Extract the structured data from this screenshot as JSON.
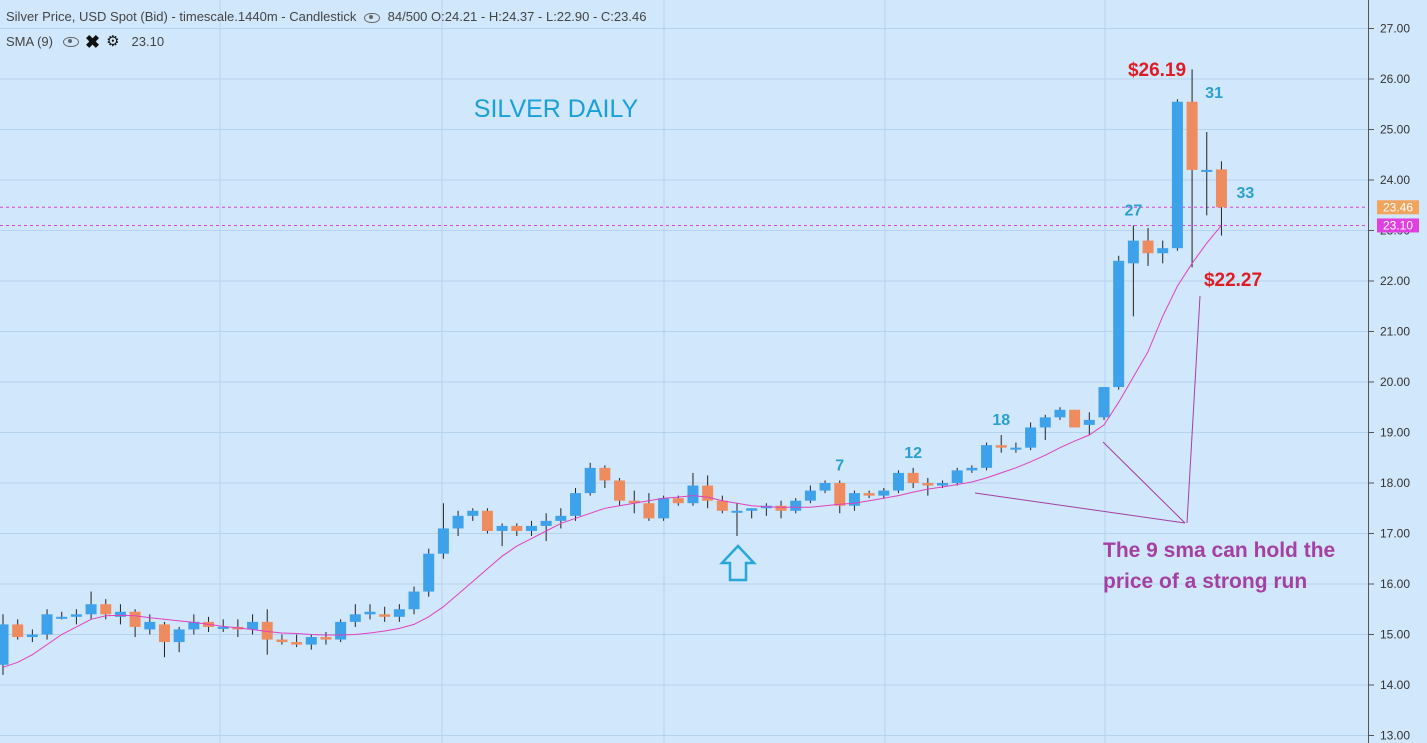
{
  "header": {
    "symbol": "Silver Price, USD Spot (Bid) - timescale.1440m - Candlestick",
    "counter": "84/500",
    "open": "O:24.21",
    "high": "H:24.37",
    "low": "L:22.90",
    "close": "C:23.46",
    "indicator_name": "SMA (9)",
    "indicator_value": "23.10"
  },
  "icons": {
    "visibility": "eye-icon",
    "remove": "close-icon",
    "settings": "gear-icon",
    "marker": "up-arrow-icon"
  },
  "colors": {
    "background": "#d1e7fb",
    "bullish": "#3ea2ea",
    "bearish": "#ef8c5f",
    "sma": "#e040c0",
    "price_line": "#f2a35c",
    "sma_line": "#e040e0",
    "title": "#1aa0d8",
    "count_label": "#2aa0d0",
    "price_annotation": "#e01b24",
    "note": "#a43fa4"
  },
  "chart_data": {
    "type": "candlestick",
    "title": "SILVER DAILY",
    "ylim": [
      13,
      27.5
    ],
    "yticks": [
      "13.00",
      "14.00",
      "15.00",
      "16.00",
      "17.00",
      "18.00",
      "19.00",
      "20.00",
      "21.00",
      "22.00",
      "23.00",
      "24.00",
      "25.00",
      "26.00",
      "27.00"
    ],
    "grid": true,
    "candles": [
      {
        "o": 14.4,
        "h": 15.4,
        "l": 14.2,
        "c": 15.2
      },
      {
        "o": 15.2,
        "h": 15.3,
        "l": 14.9,
        "c": 14.95
      },
      {
        "o": 14.95,
        "h": 15.1,
        "l": 14.85,
        "c": 15.0
      },
      {
        "o": 15.0,
        "h": 15.5,
        "l": 14.9,
        "c": 15.4
      },
      {
        "o": 15.35,
        "h": 15.45,
        "l": 15.3,
        "c": 15.35
      },
      {
        "o": 15.35,
        "h": 15.5,
        "l": 15.2,
        "c": 15.4
      },
      {
        "o": 15.4,
        "h": 15.85,
        "l": 15.3,
        "c": 15.6
      },
      {
        "o": 15.6,
        "h": 15.7,
        "l": 15.3,
        "c": 15.4
      },
      {
        "o": 15.35,
        "h": 15.6,
        "l": 15.2,
        "c": 15.45
      },
      {
        "o": 15.45,
        "h": 15.5,
        "l": 14.95,
        "c": 15.15
      },
      {
        "o": 15.1,
        "h": 15.4,
        "l": 15.0,
        "c": 15.25
      },
      {
        "o": 15.2,
        "h": 15.25,
        "l": 14.55,
        "c": 14.85
      },
      {
        "o": 14.85,
        "h": 15.15,
        "l": 14.65,
        "c": 15.1
      },
      {
        "o": 15.1,
        "h": 15.4,
        "l": 15.0,
        "c": 15.25
      },
      {
        "o": 15.25,
        "h": 15.35,
        "l": 15.05,
        "c": 15.15
      },
      {
        "o": 15.15,
        "h": 15.3,
        "l": 15.05,
        "c": 15.15
      },
      {
        "o": 15.15,
        "h": 15.3,
        "l": 14.95,
        "c": 15.1
      },
      {
        "o": 15.1,
        "h": 15.4,
        "l": 15.0,
        "c": 15.25
      },
      {
        "o": 15.25,
        "h": 15.5,
        "l": 14.6,
        "c": 14.9
      },
      {
        "o": 14.9,
        "h": 15.0,
        "l": 14.8,
        "c": 14.85
      },
      {
        "o": 14.85,
        "h": 15.0,
        "l": 14.75,
        "c": 14.8
      },
      {
        "o": 14.8,
        "h": 15.0,
        "l": 14.7,
        "c": 14.95
      },
      {
        "o": 14.95,
        "h": 15.05,
        "l": 14.8,
        "c": 14.9
      },
      {
        "o": 14.9,
        "h": 15.3,
        "l": 14.85,
        "c": 15.25
      },
      {
        "o": 15.25,
        "h": 15.6,
        "l": 15.15,
        "c": 15.4
      },
      {
        "o": 15.4,
        "h": 15.6,
        "l": 15.3,
        "c": 15.45
      },
      {
        "o": 15.4,
        "h": 15.55,
        "l": 15.25,
        "c": 15.35
      },
      {
        "o": 15.35,
        "h": 15.6,
        "l": 15.25,
        "c": 15.5
      },
      {
        "o": 15.5,
        "h": 15.95,
        "l": 15.4,
        "c": 15.85
      },
      {
        "o": 15.85,
        "h": 16.7,
        "l": 15.75,
        "c": 16.6
      },
      {
        "o": 16.6,
        "h": 17.6,
        "l": 16.5,
        "c": 17.1
      },
      {
        "o": 17.1,
        "h": 17.45,
        "l": 16.95,
        "c": 17.35
      },
      {
        "o": 17.35,
        "h": 17.5,
        "l": 17.25,
        "c": 17.45
      },
      {
        "o": 17.45,
        "h": 17.5,
        "l": 17.0,
        "c": 17.05
      },
      {
        "o": 17.05,
        "h": 17.2,
        "l": 16.75,
        "c": 17.15
      },
      {
        "o": 17.15,
        "h": 17.2,
        "l": 16.95,
        "c": 17.05
      },
      {
        "o": 17.05,
        "h": 17.25,
        "l": 16.95,
        "c": 17.15
      },
      {
        "o": 17.15,
        "h": 17.4,
        "l": 16.85,
        "c": 17.25
      },
      {
        "o": 17.25,
        "h": 17.5,
        "l": 17.1,
        "c": 17.35
      },
      {
        "o": 17.35,
        "h": 17.9,
        "l": 17.25,
        "c": 17.8
      },
      {
        "o": 17.8,
        "h": 18.4,
        "l": 17.75,
        "c": 18.3
      },
      {
        "o": 18.3,
        "h": 18.35,
        "l": 17.9,
        "c": 18.05
      },
      {
        "o": 18.05,
        "h": 18.1,
        "l": 17.55,
        "c": 17.65
      },
      {
        "o": 17.65,
        "h": 17.85,
        "l": 17.4,
        "c": 17.6
      },
      {
        "o": 17.6,
        "h": 17.8,
        "l": 17.25,
        "c": 17.3
      },
      {
        "o": 17.3,
        "h": 17.75,
        "l": 17.25,
        "c": 17.7
      },
      {
        "o": 17.7,
        "h": 17.75,
        "l": 17.55,
        "c": 17.6
      },
      {
        "o": 17.6,
        "h": 18.2,
        "l": 17.55,
        "c": 17.95
      },
      {
        "o": 17.95,
        "h": 18.15,
        "l": 17.5,
        "c": 17.65
      },
      {
        "o": 17.65,
        "h": 17.75,
        "l": 17.4,
        "c": 17.45
      },
      {
        "o": 17.45,
        "h": 17.6,
        "l": 16.95,
        "c": 17.45
      },
      {
        "o": 17.45,
        "h": 17.5,
        "l": 17.3,
        "c": 17.5
      },
      {
        "o": 17.5,
        "h": 17.6,
        "l": 17.35,
        "c": 17.55
      },
      {
        "o": 17.55,
        "h": 17.65,
        "l": 17.3,
        "c": 17.45
      },
      {
        "o": 17.45,
        "h": 17.7,
        "l": 17.4,
        "c": 17.65
      },
      {
        "o": 17.65,
        "h": 17.95,
        "l": 17.6,
        "c": 17.85
      },
      {
        "o": 17.85,
        "h": 18.05,
        "l": 17.8,
        "c": 18.0
      },
      {
        "o": 18.0,
        "h": 18.05,
        "l": 17.4,
        "c": 17.55
      },
      {
        "o": 17.55,
        "h": 17.85,
        "l": 17.45,
        "c": 17.8
      },
      {
        "o": 17.8,
        "h": 17.85,
        "l": 17.7,
        "c": 17.75
      },
      {
        "o": 17.75,
        "h": 17.9,
        "l": 17.7,
        "c": 17.85
      },
      {
        "o": 17.85,
        "h": 18.25,
        "l": 17.8,
        "c": 18.2
      },
      {
        "o": 18.2,
        "h": 18.3,
        "l": 17.9,
        "c": 18.0
      },
      {
        "o": 18.0,
        "h": 18.1,
        "l": 17.75,
        "c": 17.95
      },
      {
        "o": 17.95,
        "h": 18.05,
        "l": 17.9,
        "c": 18.0
      },
      {
        "o": 18.0,
        "h": 18.3,
        "l": 17.95,
        "c": 18.25
      },
      {
        "o": 18.25,
        "h": 18.35,
        "l": 18.2,
        "c": 18.3
      },
      {
        "o": 18.3,
        "h": 18.8,
        "l": 18.25,
        "c": 18.75
      },
      {
        "o": 18.75,
        "h": 18.95,
        "l": 18.6,
        "c": 18.7
      },
      {
        "o": 18.7,
        "h": 18.8,
        "l": 18.6,
        "c": 18.7
      },
      {
        "o": 18.7,
        "h": 19.2,
        "l": 18.65,
        "c": 19.1
      },
      {
        "o": 19.1,
        "h": 19.35,
        "l": 18.85,
        "c": 19.3
      },
      {
        "o": 19.3,
        "h": 19.5,
        "l": 19.25,
        "c": 19.45
      },
      {
        "o": 19.45,
        "h": 19.45,
        "l": 19.1,
        "c": 19.1
      },
      {
        "o": 19.15,
        "h": 19.4,
        "l": 18.95,
        "c": 19.25
      },
      {
        "o": 19.3,
        "h": 19.9,
        "l": 19.25,
        "c": 19.9
      },
      {
        "o": 19.9,
        "h": 22.5,
        "l": 19.85,
        "c": 22.4
      },
      {
        "o": 22.35,
        "h": 23.1,
        "l": 21.3,
        "c": 22.8
      },
      {
        "o": 22.8,
        "h": 23.05,
        "l": 22.3,
        "c": 22.55
      },
      {
        "o": 22.55,
        "h": 22.8,
        "l": 22.35,
        "c": 22.65
      },
      {
        "o": 22.65,
        "h": 25.6,
        "l": 22.6,
        "c": 25.55
      },
      {
        "o": 25.55,
        "h": 26.19,
        "l": 22.27,
        "c": 24.2
      },
      {
        "o": 24.2,
        "h": 24.95,
        "l": 23.3,
        "c": 24.2
      },
      {
        "o": 24.21,
        "h": 24.37,
        "l": 22.9,
        "c": 23.46
      }
    ],
    "sma": {
      "name": "SMA (9)",
      "values": [
        14.35,
        14.45,
        14.6,
        14.8,
        15.0,
        15.15,
        15.3,
        15.37,
        15.38,
        15.37,
        15.33,
        15.3,
        15.27,
        15.24,
        15.2,
        15.16,
        15.13,
        15.1,
        15.06,
        15.03,
        15.02,
        15.0,
        14.99,
        14.99,
        15.0,
        15.03,
        15.07,
        15.12,
        15.2,
        15.35,
        15.55,
        15.8,
        16.05,
        16.3,
        16.55,
        16.75,
        16.9,
        17.05,
        17.2,
        17.3,
        17.4,
        17.5,
        17.55,
        17.6,
        17.65,
        17.7,
        17.72,
        17.75,
        17.72,
        17.65,
        17.6,
        17.55,
        17.53,
        17.52,
        17.52,
        17.52,
        17.55,
        17.58,
        17.6,
        17.65,
        17.7,
        17.75,
        17.82,
        17.88,
        17.92,
        17.97,
        18.02,
        18.1,
        18.2,
        18.3,
        18.42,
        18.55,
        18.7,
        18.83,
        18.95,
        19.15,
        19.6,
        20.1,
        20.6,
        21.3,
        21.9,
        22.35,
        22.75,
        23.1
      ]
    },
    "price_lines": [
      {
        "label": "23.46",
        "value": 23.46
      },
      {
        "label": "23.10",
        "value": 23.1
      }
    ],
    "annotations": {
      "high_label": "$26.19",
      "low_label": "$22.27",
      "counts": [
        {
          "label": "7",
          "index": 57
        },
        {
          "label": "12",
          "index": 62
        },
        {
          "label": "18",
          "index": 68
        },
        {
          "label": "27",
          "index": 77
        },
        {
          "label": "31",
          "index": 81
        },
        {
          "label": "33",
          "index": 83
        }
      ],
      "note_line1": "The 9 sma can hold the",
      "note_line2": "price of a strong run"
    }
  }
}
